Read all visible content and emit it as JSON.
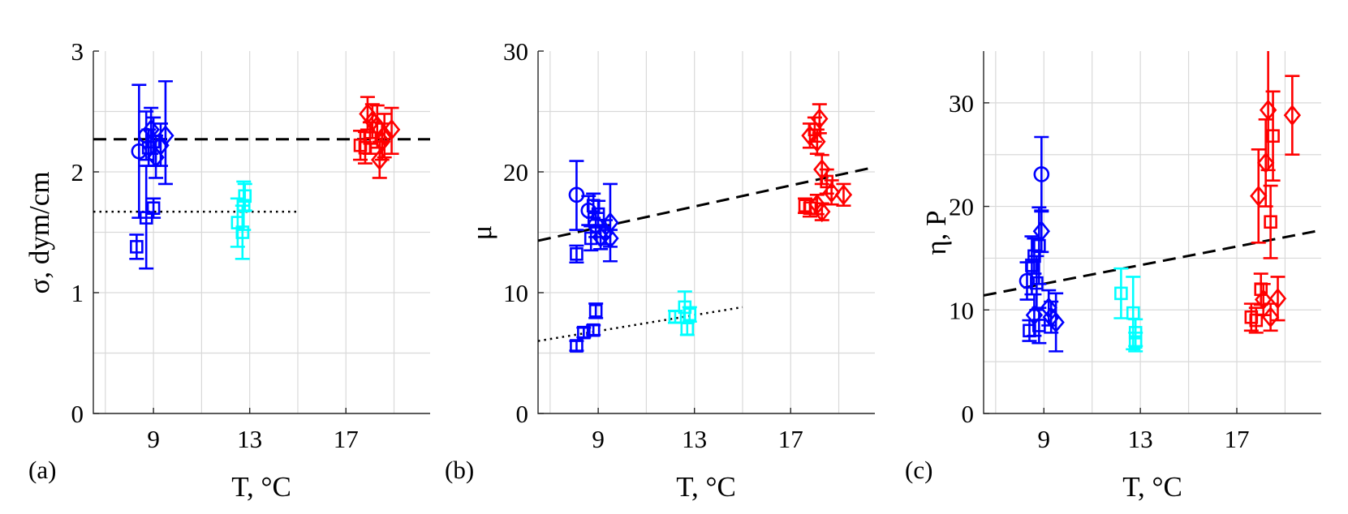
{
  "colors": {
    "blue": "#0000ff",
    "cyan": "#00ffff",
    "red": "#ff0000",
    "fit": "#000000",
    "grid": "#d9d9d9"
  },
  "chart_data": [
    {
      "type": "scatter",
      "panel_label": "(a)",
      "xlabel": "T, °C",
      "ylabel": "σ, dym/cm",
      "xlim": [
        6.5,
        20.5
      ],
      "ylim": [
        0,
        3
      ],
      "xticks": [
        9,
        13,
        17
      ],
      "xtick_labels": [
        "9",
        "13",
        "17"
      ],
      "yticks": [
        0,
        1,
        2,
        3
      ],
      "ytick_labels": [
        "0",
        "1",
        "2",
        "3"
      ],
      "grid": true,
      "points": [
        {
          "x": 8.3,
          "y": 1.38,
          "lo": 1.28,
          "hi": 1.48,
          "marker": "square",
          "color": "blue"
        },
        {
          "x": 8.7,
          "y": 1.62,
          "lo": 1.2,
          "hi": 2.05,
          "marker": "square",
          "color": "blue"
        },
        {
          "x": 9.0,
          "y": 1.7,
          "lo": 1.62,
          "hi": 1.78,
          "marker": "square",
          "color": "blue"
        },
        {
          "x": 8.4,
          "y": 2.17,
          "lo": 1.62,
          "hi": 2.72,
          "marker": "circle",
          "color": "blue"
        },
        {
          "x": 8.7,
          "y": 2.3,
          "lo": 2.1,
          "hi": 2.5,
          "marker": "circle",
          "color": "blue"
        },
        {
          "x": 8.8,
          "y": 2.2,
          "lo": 2.05,
          "hi": 2.35,
          "marker": "square",
          "color": "blue"
        },
        {
          "x": 9.0,
          "y": 2.25,
          "lo": 2.05,
          "hi": 2.45,
          "marker": "square",
          "color": "blue"
        },
        {
          "x": 8.9,
          "y": 2.35,
          "lo": 2.15,
          "hi": 2.53,
          "marker": "diamond",
          "color": "blue"
        },
        {
          "x": 9.1,
          "y": 2.12,
          "lo": 1.95,
          "hi": 2.3,
          "marker": "diamond",
          "color": "blue"
        },
        {
          "x": 9.3,
          "y": 2.22,
          "lo": 2.05,
          "hi": 2.4,
          "marker": "diamond",
          "color": "blue"
        },
        {
          "x": 9.5,
          "y": 2.3,
          "lo": 1.9,
          "hi": 2.75,
          "marker": "diamond",
          "color": "blue"
        },
        {
          "x": 12.5,
          "y": 1.58,
          "lo": 1.38,
          "hi": 1.78,
          "marker": "square",
          "color": "cyan"
        },
        {
          "x": 12.7,
          "y": 1.5,
          "lo": 1.28,
          "hi": 1.72,
          "marker": "square",
          "color": "cyan"
        },
        {
          "x": 12.75,
          "y": 1.72,
          "lo": 1.52,
          "hi": 1.92,
          "marker": "square",
          "color": "cyan"
        },
        {
          "x": 12.8,
          "y": 1.8,
          "lo": 1.68,
          "hi": 1.9,
          "marker": "square",
          "color": "cyan"
        },
        {
          "x": 17.6,
          "y": 2.22,
          "lo": 2.1,
          "hi": 2.34,
          "marker": "square",
          "color": "red"
        },
        {
          "x": 17.8,
          "y": 2.2,
          "lo": 2.07,
          "hi": 2.33,
          "marker": "square",
          "color": "red"
        },
        {
          "x": 18.0,
          "y": 2.28,
          "lo": 2.15,
          "hi": 2.41,
          "marker": "square",
          "color": "red"
        },
        {
          "x": 17.9,
          "y": 2.48,
          "lo": 2.35,
          "hi": 2.62,
          "marker": "diamond",
          "color": "red"
        },
        {
          "x": 18.1,
          "y": 2.42,
          "lo": 2.28,
          "hi": 2.56,
          "marker": "diamond",
          "color": "red"
        },
        {
          "x": 18.3,
          "y": 2.38,
          "lo": 2.2,
          "hi": 2.55,
          "marker": "diamond",
          "color": "red"
        },
        {
          "x": 18.4,
          "y": 2.1,
          "lo": 1.95,
          "hi": 2.25,
          "marker": "diamond",
          "color": "red"
        },
        {
          "x": 18.5,
          "y": 2.25,
          "lo": 2.1,
          "hi": 2.4,
          "marker": "diamond",
          "color": "red"
        },
        {
          "x": 18.6,
          "y": 2.3,
          "lo": 2.12,
          "hi": 2.48,
          "marker": "diamond",
          "color": "red"
        },
        {
          "x": 18.9,
          "y": 2.35,
          "lo": 2.15,
          "hi": 2.53,
          "marker": "diamond",
          "color": "red"
        }
      ],
      "fit_lines": [
        {
          "style": "dashed",
          "x": [
            6.5,
            20.5
          ],
          "y": [
            2.27,
            2.27
          ]
        },
        {
          "style": "dotted",
          "x": [
            6.5,
            15.0
          ],
          "y": [
            1.67,
            1.67
          ]
        }
      ]
    },
    {
      "type": "scatter",
      "panel_label": "(b)",
      "xlabel": "T, °C",
      "ylabel": "μ",
      "xlim": [
        6.5,
        20.5
      ],
      "ylim": [
        0,
        30
      ],
      "xticks": [
        9,
        13,
        17
      ],
      "xtick_labels": [
        "9",
        "13",
        "17"
      ],
      "yticks": [
        0,
        10,
        20,
        30
      ],
      "ytick_labels": [
        "0",
        "10",
        "20",
        "30"
      ],
      "grid": true,
      "points": [
        {
          "x": 8.1,
          "y": 18.1,
          "lo": 15.2,
          "hi": 20.9,
          "marker": "circle",
          "color": "blue"
        },
        {
          "x": 8.1,
          "y": 13.2,
          "lo": 12.5,
          "hi": 13.9,
          "marker": "square",
          "color": "blue"
        },
        {
          "x": 8.6,
          "y": 16.8,
          "lo": 15.6,
          "hi": 18.0,
          "marker": "circle",
          "color": "blue"
        },
        {
          "x": 8.7,
          "y": 14.5,
          "lo": 13.5,
          "hi": 15.5,
          "marker": "square",
          "color": "blue"
        },
        {
          "x": 8.8,
          "y": 17.2,
          "lo": 16.2,
          "hi": 18.2,
          "marker": "square",
          "color": "blue"
        },
        {
          "x": 8.9,
          "y": 15.6,
          "lo": 14.6,
          "hi": 16.6,
          "marker": "circle",
          "color": "blue"
        },
        {
          "x": 9.0,
          "y": 16.5,
          "lo": 15.4,
          "hi": 17.6,
          "marker": "square",
          "color": "blue"
        },
        {
          "x": 9.1,
          "y": 14.6,
          "lo": 13.6,
          "hi": 15.6,
          "marker": "diamond",
          "color": "blue"
        },
        {
          "x": 9.3,
          "y": 15.0,
          "lo": 14.0,
          "hi": 16.0,
          "marker": "diamond",
          "color": "blue"
        },
        {
          "x": 9.5,
          "y": 15.8,
          "lo": 12.6,
          "hi": 19.0,
          "marker": "diamond",
          "color": "blue"
        },
        {
          "x": 9.5,
          "y": 14.5,
          "lo": 13.8,
          "hi": 15.2,
          "marker": "diamond",
          "color": "blue"
        },
        {
          "x": 8.1,
          "y": 5.6,
          "lo": 5.2,
          "hi": 6.0,
          "marker": "square",
          "color": "blue"
        },
        {
          "x": 8.4,
          "y": 6.7,
          "lo": 6.3,
          "hi": 7.1,
          "marker": "square",
          "color": "blue"
        },
        {
          "x": 8.8,
          "y": 6.9,
          "lo": 6.5,
          "hi": 7.3,
          "marker": "square",
          "color": "blue"
        },
        {
          "x": 8.9,
          "y": 8.5,
          "lo": 7.9,
          "hi": 9.1,
          "marker": "square",
          "color": "blue"
        },
        {
          "x": 12.2,
          "y": 8.0,
          "lo": 7.5,
          "hi": 8.5,
          "marker": "square",
          "color": "cyan"
        },
        {
          "x": 12.6,
          "y": 8.8,
          "lo": 7.5,
          "hi": 10.1,
          "marker": "square",
          "color": "cyan"
        },
        {
          "x": 12.7,
          "y": 7.0,
          "lo": 6.5,
          "hi": 7.5,
          "marker": "square",
          "color": "cyan"
        },
        {
          "x": 12.8,
          "y": 8.2,
          "lo": 7.6,
          "hi": 8.8,
          "marker": "square",
          "color": "cyan"
        },
        {
          "x": 17.6,
          "y": 17.2,
          "lo": 16.6,
          "hi": 17.8,
          "marker": "square",
          "color": "red"
        },
        {
          "x": 17.8,
          "y": 17.0,
          "lo": 16.3,
          "hi": 17.7,
          "marker": "square",
          "color": "red"
        },
        {
          "x": 17.8,
          "y": 23.0,
          "lo": 22.0,
          "hi": 24.0,
          "marker": "diamond",
          "color": "red"
        },
        {
          "x": 18.0,
          "y": 23.5,
          "lo": 22.5,
          "hi": 24.5,
          "marker": "square",
          "color": "red"
        },
        {
          "x": 18.1,
          "y": 22.5,
          "lo": 21.5,
          "hi": 23.5,
          "marker": "diamond",
          "color": "red"
        },
        {
          "x": 18.2,
          "y": 24.4,
          "lo": 23.2,
          "hi": 25.6,
          "marker": "diamond",
          "color": "red"
        },
        {
          "x": 18.1,
          "y": 17.3,
          "lo": 16.5,
          "hi": 18.1,
          "marker": "diamond",
          "color": "red"
        },
        {
          "x": 18.3,
          "y": 16.7,
          "lo": 16.0,
          "hi": 17.4,
          "marker": "diamond",
          "color": "red"
        },
        {
          "x": 18.3,
          "y": 20.2,
          "lo": 19.0,
          "hi": 21.4,
          "marker": "diamond",
          "color": "red"
        },
        {
          "x": 18.5,
          "y": 19.2,
          "lo": 18.2,
          "hi": 20.2,
          "marker": "square",
          "color": "red"
        },
        {
          "x": 18.7,
          "y": 18.3,
          "lo": 17.3,
          "hi": 19.3,
          "marker": "diamond",
          "color": "red"
        },
        {
          "x": 19.2,
          "y": 18.1,
          "lo": 17.2,
          "hi": 19.0,
          "marker": "diamond",
          "color": "red"
        }
      ],
      "fit_lines": [
        {
          "style": "dashed",
          "x": [
            6.5,
            20.5
          ],
          "y": [
            14.3,
            20.4
          ]
        },
        {
          "style": "dotted",
          "x": [
            6.5,
            15.0
          ],
          "y": [
            6.0,
            8.8
          ]
        }
      ]
    },
    {
      "type": "scatter",
      "panel_label": "(c)",
      "xlabel": "T, °C",
      "ylabel": "η, P",
      "xlim": [
        6.5,
        20.5
      ],
      "ylim": [
        0,
        35
      ],
      "xticks": [
        9,
        13,
        17
      ],
      "xtick_labels": [
        "9",
        "13",
        "17"
      ],
      "yticks": [
        0,
        10,
        20,
        30
      ],
      "ytick_labels": [
        "0",
        "10",
        "20",
        "30"
      ],
      "minor_y_gridlines": [
        5,
        15,
        25
      ],
      "grid": true,
      "points": [
        {
          "x": 8.3,
          "y": 12.8,
          "lo": 11.0,
          "hi": 14.6,
          "marker": "circle",
          "color": "blue"
        },
        {
          "x": 8.4,
          "y": 8.0,
          "lo": 7.0,
          "hi": 9.0,
          "marker": "square",
          "color": "blue"
        },
        {
          "x": 8.5,
          "y": 14.3,
          "lo": 11.5,
          "hi": 17.1,
          "marker": "square",
          "color": "blue"
        },
        {
          "x": 8.6,
          "y": 15.2,
          "lo": 13.5,
          "hi": 16.9,
          "marker": "square",
          "color": "blue"
        },
        {
          "x": 8.7,
          "y": 12.6,
          "lo": 10.0,
          "hi": 15.2,
          "marker": "square",
          "color": "blue"
        },
        {
          "x": 8.8,
          "y": 16.2,
          "lo": 12.5,
          "hi": 19.9,
          "marker": "square",
          "color": "blue"
        },
        {
          "x": 8.9,
          "y": 23.1,
          "lo": 19.5,
          "hi": 26.7,
          "marker": "circle",
          "color": "blue"
        },
        {
          "x": 8.9,
          "y": 17.6,
          "lo": 15.6,
          "hi": 19.6,
          "marker": "diamond",
          "color": "blue"
        },
        {
          "x": 8.6,
          "y": 9.5,
          "lo": 7.5,
          "hi": 11.5,
          "marker": "diamond",
          "color": "blue"
        },
        {
          "x": 8.8,
          "y": 8.5,
          "lo": 6.8,
          "hi": 10.2,
          "marker": "square",
          "color": "blue"
        },
        {
          "x": 9.2,
          "y": 10.2,
          "lo": 8.5,
          "hi": 11.9,
          "marker": "diamond",
          "color": "blue"
        },
        {
          "x": 9.3,
          "y": 9.3,
          "lo": 7.8,
          "hi": 10.8,
          "marker": "diamond",
          "color": "blue"
        },
        {
          "x": 9.5,
          "y": 8.8,
          "lo": 6.0,
          "hi": 11.6,
          "marker": "diamond",
          "color": "blue"
        },
        {
          "x": 12.2,
          "y": 11.6,
          "lo": 9.2,
          "hi": 14.0,
          "marker": "square",
          "color": "cyan"
        },
        {
          "x": 12.7,
          "y": 9.7,
          "lo": 6.2,
          "hi": 13.2,
          "marker": "square",
          "color": "cyan"
        },
        {
          "x": 12.8,
          "y": 7.8,
          "lo": 6.5,
          "hi": 9.1,
          "marker": "square",
          "color": "cyan"
        },
        {
          "x": 12.8,
          "y": 6.9,
          "lo": 6.0,
          "hi": 7.8,
          "marker": "square",
          "color": "cyan"
        },
        {
          "x": 17.6,
          "y": 9.3,
          "lo": 8.0,
          "hi": 10.6,
          "marker": "square",
          "color": "red"
        },
        {
          "x": 17.8,
          "y": 9.0,
          "lo": 7.8,
          "hi": 10.2,
          "marker": "square",
          "color": "red"
        },
        {
          "x": 17.9,
          "y": 21.0,
          "lo": 16.5,
          "hi": 25.5,
          "marker": "diamond",
          "color": "red"
        },
        {
          "x": 18.0,
          "y": 12.0,
          "lo": 10.5,
          "hi": 13.5,
          "marker": "square",
          "color": "red"
        },
        {
          "x": 18.1,
          "y": 11.0,
          "lo": 9.5,
          "hi": 12.5,
          "marker": "diamond",
          "color": "red"
        },
        {
          "x": 18.2,
          "y": 24.2,
          "lo": 20.0,
          "hi": 28.4,
          "marker": "diamond",
          "color": "red"
        },
        {
          "x": 18.3,
          "y": 29.3,
          "lo": 23.5,
          "hi": 35.5,
          "marker": "diamond",
          "color": "red"
        },
        {
          "x": 18.4,
          "y": 9.3,
          "lo": 8.0,
          "hi": 10.6,
          "marker": "diamond",
          "color": "red"
        },
        {
          "x": 18.4,
          "y": 18.5,
          "lo": 15.0,
          "hi": 22.0,
          "marker": "square",
          "color": "red"
        },
        {
          "x": 18.5,
          "y": 26.8,
          "lo": 22.5,
          "hi": 31.1,
          "marker": "square",
          "color": "red"
        },
        {
          "x": 18.7,
          "y": 11.1,
          "lo": 9.0,
          "hi": 13.2,
          "marker": "diamond",
          "color": "red"
        },
        {
          "x": 19.3,
          "y": 28.8,
          "lo": 25.0,
          "hi": 32.6,
          "marker": "diamond",
          "color": "red"
        }
      ],
      "fit_lines": [
        {
          "style": "dashed",
          "x": [
            6.5,
            20.5
          ],
          "y": [
            11.4,
            17.7
          ]
        }
      ]
    }
  ]
}
